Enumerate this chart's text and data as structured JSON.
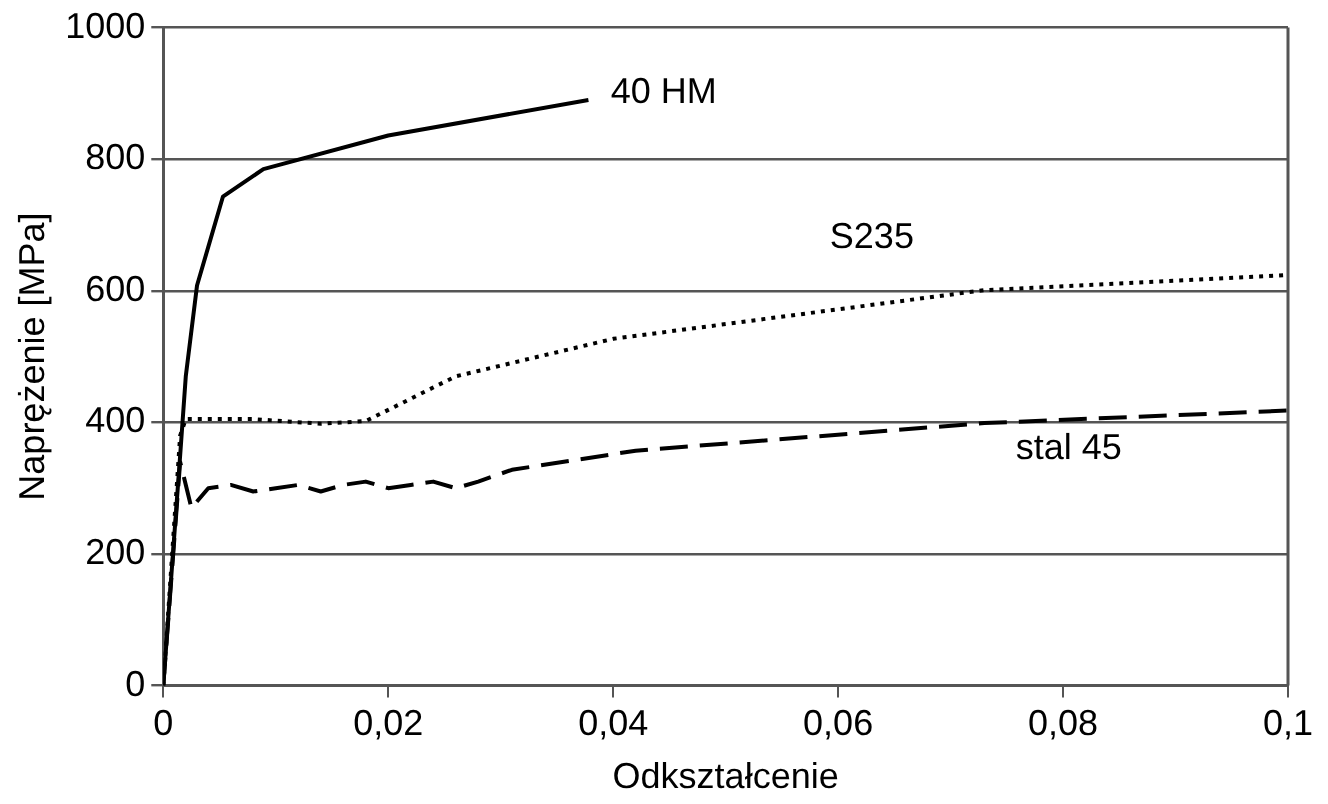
{
  "chart_data": {
    "type": "line",
    "xlabel": "Odkształcenie",
    "ylabel": "Naprężenie [MPa]",
    "xlim": [
      0,
      0.1
    ],
    "xticks": [
      0,
      {
        "value": 0.02,
        "label": "0,02"
      },
      {
        "value": 0.04,
        "label": "0,04"
      },
      {
        "value": 0.06,
        "label": "0,06"
      },
      {
        "value": 0.08,
        "label": "0,08"
      },
      {
        "value": 0.1,
        "label": "0,1"
      }
    ],
    "ylim": [
      0,
      1000
    ],
    "yticks": [
      0,
      200,
      400,
      600,
      800,
      1000
    ],
    "grid": "y",
    "legend": false,
    "marker": "none",
    "series": [
      {
        "name": "40 HM",
        "color": "#000000",
        "line_style": "solid",
        "x": [
          0,
          0.0015,
          0.002,
          0.003,
          0.0053,
          0.0089,
          0.02,
          0.0378
        ],
        "values": [
          0,
          350,
          470,
          608,
          743,
          785,
          836,
          890
        ]
      },
      {
        "name": "S235",
        "color": "#000000",
        "line_style": "dotted",
        "x": [
          0,
          0.0015,
          0.002,
          0.008,
          0.014,
          0.018,
          0.026,
          0.04,
          0.073,
          0.1
        ],
        "values": [
          0,
          380,
          405,
          405,
          398,
          402,
          470,
          527,
          601,
          624
        ]
      },
      {
        "name": "stal 45",
        "color": "#000000",
        "line_style": "dashed",
        "x": [
          0,
          0.0015,
          0.0025,
          0.004,
          0.006,
          0.008,
          0.01,
          0.012,
          0.014,
          0.016,
          0.018,
          0.02,
          0.022,
          0.024,
          0.026,
          0.028,
          0.031,
          0.042,
          0.073,
          0.1
        ],
        "values": [
          0,
          340,
          270,
          300,
          305,
          295,
          300,
          305,
          295,
          305,
          310,
          300,
          305,
          310,
          300,
          310,
          328,
          357,
          399,
          418
        ]
      }
    ]
  }
}
